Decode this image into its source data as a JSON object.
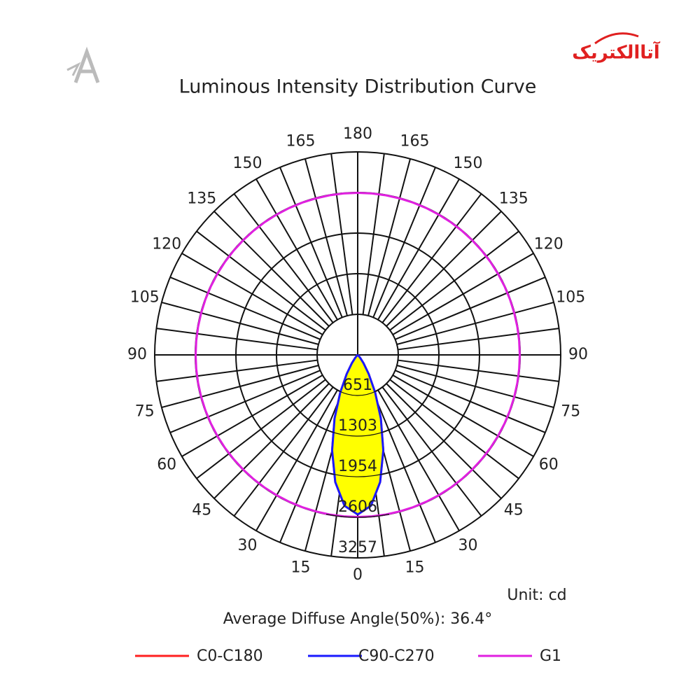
{
  "logo_text": "آتاالکتریک",
  "chart_data": {
    "type": "polar",
    "title": "Luminous Intensity Distribution Curve",
    "angles": [
      0,
      5,
      10,
      15,
      20,
      25,
      30,
      35,
      40,
      45,
      50,
      55,
      60,
      65,
      70,
      75,
      80,
      85,
      90,
      95,
      100,
      105,
      110,
      115,
      120,
      125,
      130,
      135,
      140,
      145,
      150,
      155,
      160,
      165,
      170,
      175,
      180
    ],
    "series": [
      {
        "name": "C0-C180",
        "color": "#ff2020",
        "values": [
          2560,
          2429,
          2072,
          1586,
          1085,
          658,
          352,
          163,
          65,
          21,
          6,
          0,
          0,
          0,
          0,
          0,
          0,
          0,
          0,
          0,
          0,
          0,
          0,
          0,
          0,
          0,
          0,
          0,
          0,
          0,
          0,
          0,
          0,
          0,
          0,
          0,
          0
        ]
      },
      {
        "name": "C90-C270",
        "color": "#1a1aff",
        "fill": "#ffff00",
        "values": [
          2560,
          2429,
          2072,
          1586,
          1085,
          658,
          352,
          163,
          65,
          21,
          6,
          0,
          0,
          0,
          0,
          0,
          0,
          0,
          0,
          0,
          0,
          0,
          0,
          0,
          0,
          0,
          0,
          0,
          0,
          0,
          0,
          0,
          0,
          0,
          0,
          0,
          0
        ]
      },
      {
        "name": "G1",
        "color": "#e020e0",
        "values": [
          2600,
          2600,
          2600,
          2600,
          2600,
          2600,
          2600,
          2600,
          2600,
          2600,
          2600,
          2600,
          2600,
          2600,
          2600,
          2600,
          2600,
          2600,
          2600,
          2600,
          2600,
          2600,
          2600,
          2600,
          2600,
          2600,
          2600,
          2600,
          2600,
          2600,
          2600,
          2600,
          2600,
          2600,
          2600,
          2600,
          2600
        ]
      }
    ],
    "rlim": [
      0,
      3257
    ],
    "rticks": [
      651,
      1303,
      1954,
      2606,
      3257
    ],
    "angle_ticks": [
      0,
      15,
      30,
      45,
      60,
      75,
      90,
      105,
      120,
      135,
      150,
      165,
      180
    ],
    "unit_label": "Unit: cd",
    "annotation": "Average Diffuse Angle(50%): 36.4°"
  }
}
